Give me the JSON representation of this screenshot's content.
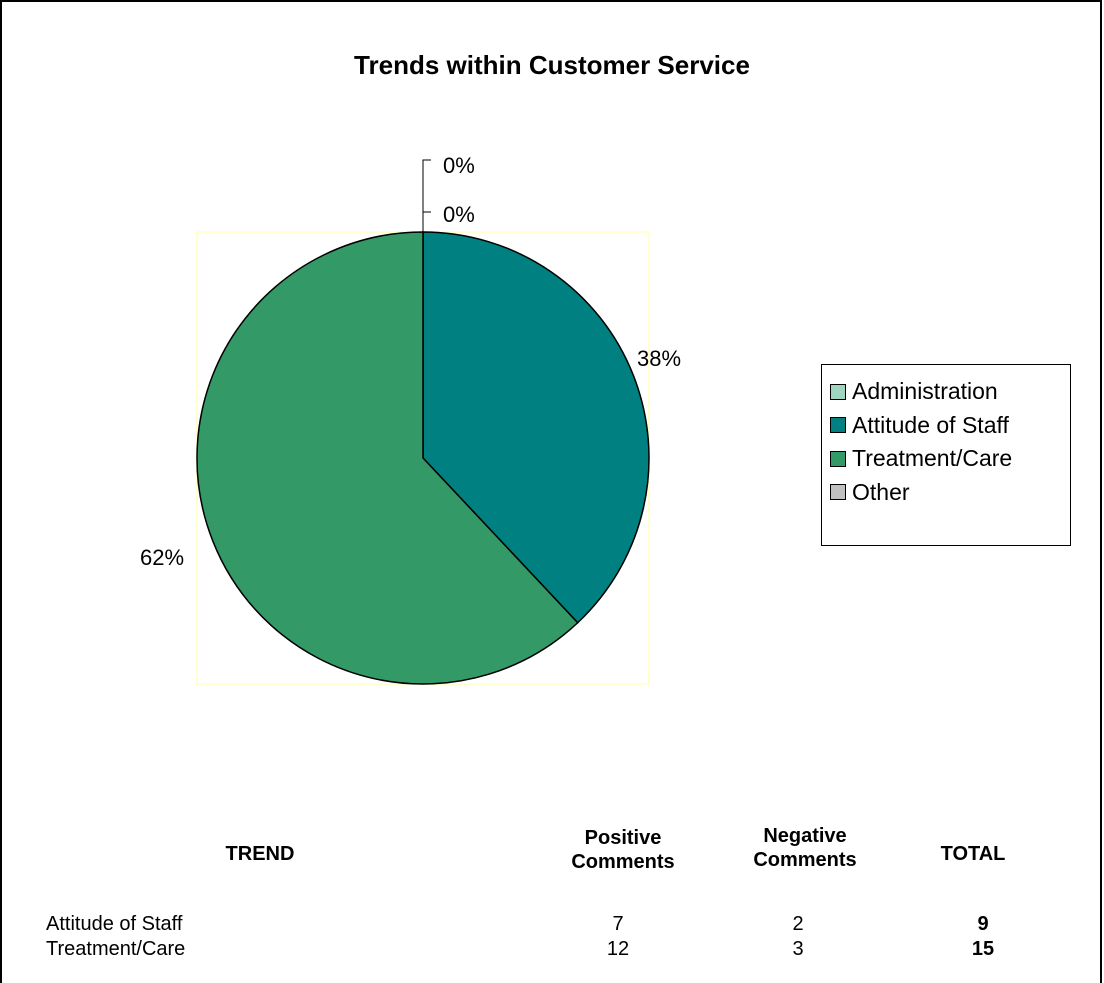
{
  "chart_data": {
    "type": "pie",
    "title": "Trends within Customer Service",
    "categories": [
      "Administration",
      "Attitude of Staff",
      "Treatment/Care",
      "Other"
    ],
    "values": [
      0,
      38,
      62,
      0
    ],
    "labels": [
      "0%",
      "38%",
      "62%",
      "0%"
    ],
    "colors": [
      "#9fd4c0",
      "#008080",
      "#339966",
      "#c0c0c0"
    ],
    "legend_position": "right"
  },
  "table": {
    "headers": {
      "trend": "TREND",
      "positive": "Positive Comments",
      "negative": "Negative Comments",
      "total": "TOTAL"
    },
    "rows": [
      {
        "trend": "Attitude of Staff",
        "positive": "7",
        "negative": "2",
        "total": "9"
      },
      {
        "trend": "Treatment/Care",
        "positive": "12",
        "negative": "3",
        "total": "15"
      }
    ]
  }
}
